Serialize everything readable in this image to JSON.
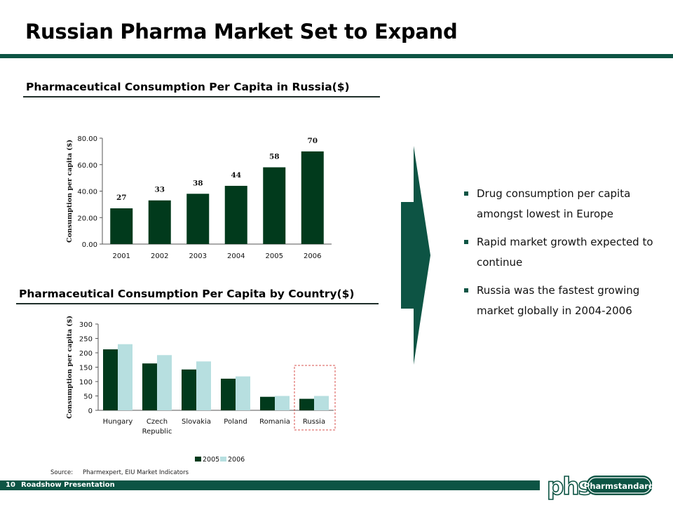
{
  "title": "Russian Pharma Market Set to Expand",
  "colors": {
    "primary": "#013a1c",
    "accent": "#0d5444",
    "light_series": "#b7dfe0",
    "highlight_box": "#d9534f"
  },
  "chart1_heading": "Pharmaceutical Consumption Per Capita in Russia($)",
  "chart2_heading": "Pharmaceutical Consumption Per Capita by Country($)",
  "bullets": [
    "Drug consumption per capita amongst lowest in Europe",
    "Rapid market growth expected to continue",
    "Russia was the fastest growing market globally in 2004-2006"
  ],
  "source": {
    "label": "Source:",
    "text": "Pharmexpert, EIU Market Indicators"
  },
  "footer": {
    "page_number": "10",
    "text": "Roadshow Presentation"
  },
  "logo": {
    "mark": "phs",
    "name": "Pharmstandard"
  },
  "chart_data": [
    {
      "type": "bar",
      "title": "Pharmaceutical Consumption Per Capita in Russia($)",
      "categories": [
        "2001",
        "2002",
        "2003",
        "2004",
        "2005",
        "2006"
      ],
      "values": [
        27,
        33,
        38,
        44,
        58,
        70
      ],
      "data_labels": [
        "27",
        "33",
        "38",
        "44",
        "58",
        "70"
      ],
      "ylabel": "Consumption per capita ($)",
      "xlabel": "",
      "ylim": [
        0,
        80
      ],
      "yticks": [
        "0.00",
        "20.00",
        "40.00",
        "60.00",
        "80.00"
      ],
      "grid": false
    },
    {
      "type": "bar",
      "title": "Pharmaceutical Consumption Per Capita by Country($)",
      "categories": [
        "Hungary",
        "Czech Republic",
        "Slovakia",
        "Poland",
        "Romania",
        "Russia"
      ],
      "series": [
        {
          "name": "2005",
          "values": [
            212,
            163,
            142,
            110,
            47,
            40
          ]
        },
        {
          "name": "2006",
          "values": [
            230,
            192,
            170,
            118,
            50,
            50
          ]
        }
      ],
      "ylabel": "Consumption per capita ($)",
      "xlabel": "",
      "ylim": [
        0,
        300
      ],
      "yticks": [
        "0",
        "50",
        "100",
        "150",
        "200",
        "250",
        "300"
      ],
      "legend": "bottom",
      "highlight": "Russia",
      "grid": false
    }
  ]
}
